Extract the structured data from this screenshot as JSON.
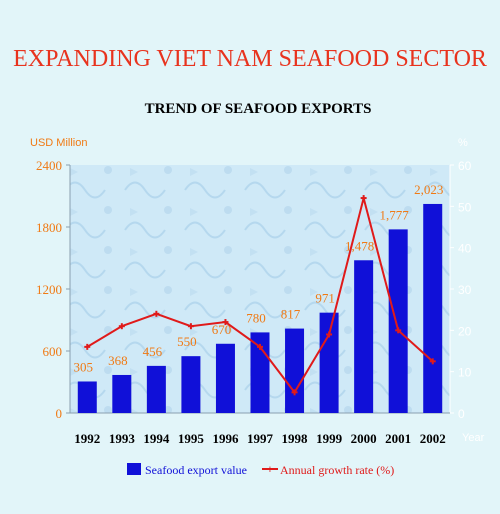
{
  "header": {
    "title": "EXPANDING VIET NAM SEAFOOD SECTOR",
    "subtitle": "TREND OF SEAFOOD EXPORTS"
  },
  "colors": {
    "background": "#e2f5f9",
    "title": "#e8331e",
    "bars": "#1010d8",
    "line": "#e01a1a",
    "axis_labels": "#f07a14",
    "plot_bg": "#cfe9f7"
  },
  "chart_data": {
    "type": "bar",
    "categories": [
      "1992",
      "1993",
      "1994",
      "1995",
      "1996",
      "1997",
      "1998",
      "1999",
      "2000",
      "2001",
      "2002"
    ],
    "series": [
      {
        "name": "Seafood export value",
        "type": "bar",
        "axis": "left",
        "values": [
          305,
          368,
          456,
          550,
          670,
          780,
          817,
          971,
          1478,
          1777,
          2023
        ],
        "labels": [
          "305",
          "368",
          "456",
          "550",
          "670",
          "780",
          "817",
          "971",
          "1,478",
          "1,777",
          "2,023"
        ]
      },
      {
        "name": "Annual growth rate (%)",
        "type": "line",
        "axis": "right",
        "values": [
          16,
          21,
          24,
          21,
          22,
          16,
          5,
          19,
          52,
          20,
          12.5
        ]
      }
    ],
    "ylabel_left": "USD Million",
    "ylabel_right": "%",
    "xlabel": "Year",
    "ylim_left": [
      0,
      2400
    ],
    "yticks_left": [
      "0",
      "600",
      "1200",
      "1800",
      "2400"
    ],
    "ylim_right": [
      0,
      60
    ],
    "yticks_right": [
      "0",
      "10",
      "20",
      "30",
      "40",
      "50",
      "60"
    ],
    "legend_position": "bottom",
    "grid": false
  }
}
